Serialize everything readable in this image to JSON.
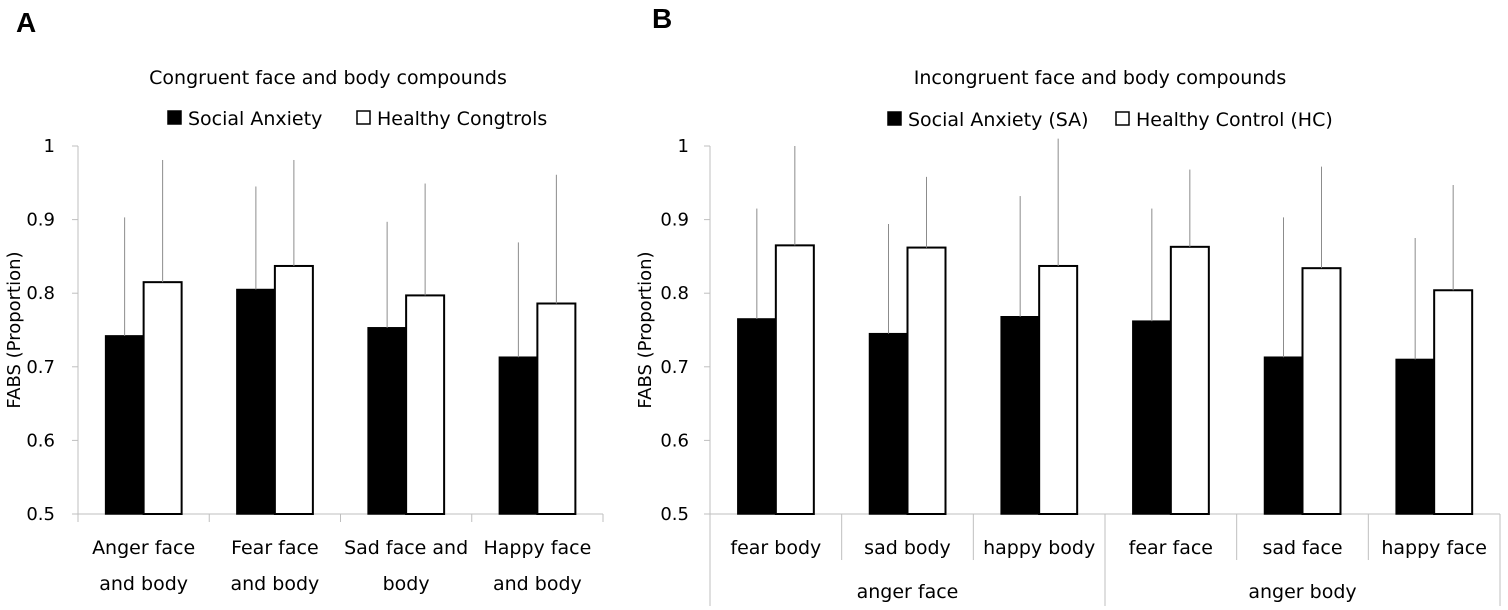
{
  "chart_data": [
    {
      "panel": "A",
      "type": "bar",
      "title": "Congruent face and body compounds",
      "ylabel": "FABS (Proportion)",
      "xlabel": "",
      "ylim": [
        0.5,
        1
      ],
      "yticks": [
        "1",
        "0.9",
        "0.8",
        "0.7",
        "0.6",
        "0.5"
      ],
      "categories": [
        [
          "Anger face",
          "and body"
        ],
        [
          "Fear face",
          "and body"
        ],
        [
          "Sad face and",
          "body"
        ],
        [
          "Happy face",
          "and body"
        ]
      ],
      "groups": [],
      "legend": [
        "Social Anxiety",
        "Healthy Congtrols"
      ],
      "series": [
        {
          "name": "Social Anxiety",
          "fill": "#000000",
          "values": [
            0.742,
            0.805,
            0.753,
            0.713
          ],
          "error": [
            0.161,
            0.14,
            0.144,
            0.156
          ]
        },
        {
          "name": "Healthy Congtrols",
          "fill": "#ffffff",
          "values": [
            0.815,
            0.837,
            0.797,
            0.786
          ],
          "error": [
            0.166,
            0.144,
            0.152,
            0.175
          ]
        }
      ]
    },
    {
      "panel": "B",
      "type": "bar",
      "title": "Incongruent face and body compounds",
      "ylabel": "FABS (Proportion)",
      "xlabel": "",
      "ylim": [
        0.5,
        1
      ],
      "yticks": [
        "1",
        "0.9",
        "0.8",
        "0.7",
        "0.6",
        "0.5"
      ],
      "categories": [
        [
          "fear body"
        ],
        [
          "sad body"
        ],
        [
          "happy body"
        ],
        [
          "fear face"
        ],
        [
          "sad face"
        ],
        [
          "happy face"
        ]
      ],
      "groups": [
        {
          "label": "anger face",
          "span": [
            0,
            2
          ]
        },
        {
          "label": "anger body",
          "span": [
            3,
            5
          ]
        }
      ],
      "legend": [
        "Social Anxiety (SA)",
        "Healthy Control (HC)"
      ],
      "series": [
        {
          "name": "Social Anxiety (SA)",
          "fill": "#000000",
          "values": [
            0.765,
            0.745,
            0.768,
            0.762,
            0.713,
            0.71
          ],
          "error": [
            0.15,
            0.149,
            0.164,
            0.153,
            0.19,
            0.165
          ]
        },
        {
          "name": "Healthy Control (HC)",
          "fill": "#ffffff",
          "values": [
            0.865,
            0.862,
            0.837,
            0.863,
            0.834,
            0.804
          ],
          "error": [
            0.135,
            0.096,
            0.173,
            0.105,
            0.138,
            0.143
          ]
        }
      ]
    }
  ]
}
